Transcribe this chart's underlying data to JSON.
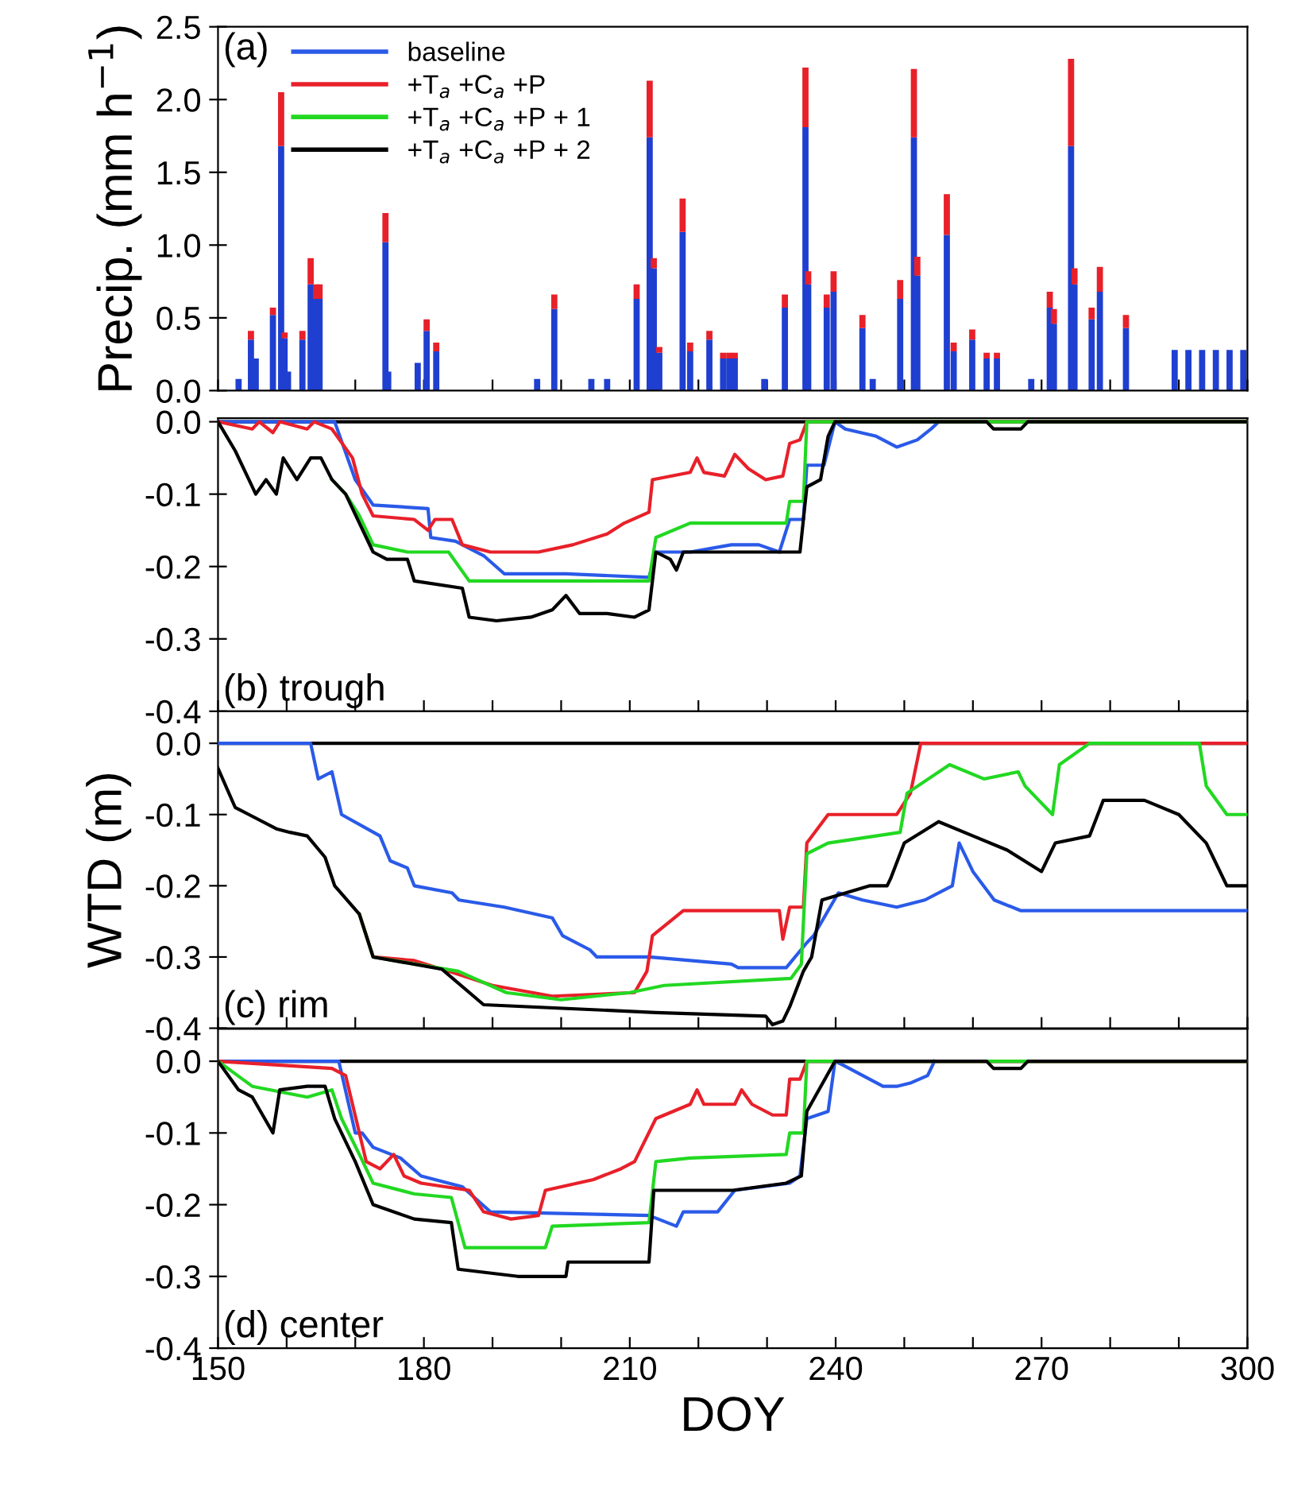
{
  "chart_data": [
    {
      "type": "bar",
      "stacked": true,
      "ylabel": "Precip. (mm h$^{−1}$)",
      "annotations": [
        "(a)"
      ],
      "tick_labels": "y",
      "x": [
        153,
        154.8,
        155.5,
        158,
        159.2,
        159.7,
        160.2,
        162.3,
        163.5,
        164.3,
        164.8,
        174.4,
        174.8,
        179.1,
        180.4,
        181.8,
        196.5,
        199,
        204.4,
        206.7,
        211,
        212.9,
        213.5,
        214.3,
        217.7,
        218.8,
        221.6,
        223.6,
        224.5,
        225.3,
        229.6,
        232.6,
        235.6,
        236,
        238.7,
        239.7,
        243.9,
        245.4,
        249.4,
        251.4,
        251.9,
        256.2,
        257.2,
        259.9,
        262,
        263.5,
        268.5,
        271.2,
        271.8,
        274.3,
        274.8,
        277.3,
        278.5,
        282.3,
        289.4,
        291.4,
        293.4,
        295.4,
        297.4,
        299.4
      ],
      "series": [
        {
          "color": "#1f3fd0",
          "values": [
            0.08,
            0.35,
            0.22,
            0.52,
            1.68,
            0.36,
            0.13,
            0.35,
            0.73,
            0.63,
            0.63,
            1.02,
            0.13,
            0.19,
            0.41,
            0.27,
            0.08,
            0.56,
            0.08,
            0.08,
            0.63,
            1.74,
            0.84,
            0.26,
            1.09,
            0.27,
            0.35,
            0.22,
            0.22,
            0.22,
            0.08,
            0.57,
            1.81,
            0.73,
            0.57,
            0.68,
            0.43,
            0.08,
            0.63,
            1.74,
            0.79,
            1.07,
            0.27,
            0.35,
            0.22,
            0.22,
            0.08,
            0.57,
            0.46,
            1.68,
            0.73,
            0.49,
            0.68,
            0.43,
            0.28,
            0.28,
            0.28,
            0.28,
            0.28,
            0.28
          ]
        },
        {
          "color": "#e8202a",
          "values": [
            null,
            0.06,
            null,
            0.05,
            0.37,
            0.04,
            null,
            0.06,
            0.18,
            0.1,
            0.1,
            0.2,
            null,
            null,
            0.08,
            0.06,
            null,
            0.1,
            null,
            null,
            0.1,
            0.39,
            0.07,
            0.04,
            0.23,
            0.06,
            0.06,
            0.04,
            0.04,
            0.04,
            null,
            0.09,
            0.41,
            0.09,
            0.09,
            0.14,
            0.09,
            null,
            0.13,
            0.47,
            0.13,
            0.28,
            0.06,
            0.07,
            0.04,
            0.04,
            null,
            0.11,
            0.1,
            0.6,
            0.11,
            0.08,
            0.17,
            0.09,
            null,
            null,
            null,
            null,
            null,
            null
          ]
        }
      ],
      "xlim": [
        150,
        300
      ],
      "xticks": [
        150,
        {
          "value": 160,
          "label": null
        },
        {
          "value": 170,
          "label": null
        },
        180,
        {
          "value": 190,
          "label": null
        },
        {
          "value": 200,
          "label": null
        },
        210,
        {
          "value": 220,
          "label": null
        },
        {
          "value": 230,
          "label": null
        },
        240,
        {
          "value": 250,
          "label": null
        },
        {
          "value": 260,
          "label": null
        },
        270,
        {
          "value": 280,
          "label": null
        },
        {
          "value": 290,
          "label": null
        },
        300
      ],
      "ylim": [
        0,
        2.5
      ],
      "yticks": [
        {
          "value": 0,
          "label": "0.0"
        },
        0.5,
        {
          "value": 1,
          "label": "1.0"
        },
        1.5,
        {
          "value": 2,
          "label": "2.0"
        },
        2.5
      ]
    },
    {
      "type": "line",
      "annotations": [
        "(b) trough"
      ],
      "legend": "top left",
      "tick_labels": "y",
      "ref_lines": [
        {
          "axis": "y",
          "value": 0,
          "color": "#000000"
        }
      ],
      "series": [
        {
          "name": "baseline",
          "color": "#2a5ae8",
          "x": [
            150,
            167,
            170,
            172.6,
            180.6,
            181,
            184.6,
            188.7,
            191.7,
            200.7,
            212.8,
            213.8,
            218.8,
            224.8,
            228.8,
            231.8,
            233.3,
            235.3,
            235.8,
            238.3,
            239.9,
            241.4,
            245.9,
            248.9,
            251.9,
            253.9,
            255
          ],
          "values": [
            0,
            0,
            -0.08,
            -0.115,
            -0.12,
            -0.16,
            -0.165,
            -0.185,
            -0.21,
            -0.21,
            -0.215,
            -0.18,
            -0.18,
            -0.17,
            -0.17,
            -0.18,
            -0.135,
            -0.135,
            -0.06,
            -0.06,
            0,
            -0.01,
            -0.02,
            -0.035,
            -0.025,
            -0.01,
            0
          ]
        },
        {
          "name": "+T$_{a}$ +C$_{a}$ +P",
          "color": "#e8202a",
          "x": [
            150,
            155,
            156,
            158,
            159,
            163,
            164,
            166.6,
            169.6,
            171,
            172.6,
            178.6,
            180.6,
            181.6,
            184.1,
            185.6,
            189.7,
            196.7,
            201.7,
            206.7,
            209.2,
            212.8,
            213.3,
            218.8,
            219.8,
            220.8,
            223.8,
            225.3,
            227.3,
            229.8,
            232.3,
            233.3,
            234.8,
            235.8,
            300
          ],
          "values": [
            0,
            -0.01,
            0,
            -0.015,
            0,
            -0.01,
            0,
            -0.01,
            -0.05,
            -0.1,
            -0.13,
            -0.135,
            -0.15,
            -0.135,
            -0.135,
            -0.17,
            -0.18,
            -0.18,
            -0.17,
            -0.155,
            -0.14,
            -0.125,
            -0.08,
            -0.07,
            -0.05,
            -0.07,
            -0.075,
            -0.045,
            -0.065,
            -0.08,
            -0.075,
            -0.03,
            -0.025,
            0,
            0
          ]
        },
        {
          "name": "+T$_{a}$ +C$_{a}$ +P + 1",
          "color": "#22d822",
          "x": [
            166.6,
            168.6,
            170.6,
            172.6,
            177.6,
            183.6,
            186.6,
            200.7,
            212.8,
            213.8,
            218.8,
            232.8,
            233.3,
            235.3,
            235.8,
            300
          ],
          "values": [
            -0.08,
            -0.1,
            -0.13,
            -0.17,
            -0.18,
            -0.18,
            -0.22,
            -0.22,
            -0.22,
            -0.16,
            -0.14,
            -0.14,
            -0.11,
            -0.11,
            0,
            0
          ]
        },
        {
          "name": "+T$_{a}$ +C$_{a}$ +P + 2",
          "color": "#000000",
          "x": [
            150,
            152.5,
            154.5,
            155.5,
            157,
            158.5,
            159.5,
            161.5,
            163.5,
            165,
            166.6,
            168.6,
            170.6,
            172.6,
            174.6,
            177.6,
            178.6,
            185.6,
            186.6,
            190.6,
            195.6,
            198.7,
            200.7,
            202.7,
            206.7,
            210.7,
            212.8,
            213.8,
            215.9,
            216.8,
            217.8,
            224.8,
            234.8,
            235.8,
            237.8,
            238.9,
            239.9,
            262,
            263,
            267,
            268,
            300
          ],
          "values": [
            0,
            -0.04,
            -0.08,
            -0.1,
            -0.08,
            -0.1,
            -0.05,
            -0.08,
            -0.05,
            -0.05,
            -0.08,
            -0.1,
            -0.14,
            -0.18,
            -0.19,
            -0.19,
            -0.22,
            -0.23,
            -0.27,
            -0.275,
            -0.27,
            -0.26,
            -0.24,
            -0.265,
            -0.265,
            -0.27,
            -0.26,
            -0.18,
            -0.19,
            -0.205,
            -0.18,
            -0.18,
            -0.18,
            -0.09,
            -0.08,
            -0.02,
            0,
            0,
            -0.01,
            -0.01,
            0,
            0
          ]
        }
      ],
      "xlim": [
        150,
        300
      ],
      "xticks": [
        150,
        {
          "value": 160,
          "label": null
        },
        {
          "value": 170,
          "label": null
        },
        180,
        {
          "value": 190,
          "label": null
        },
        {
          "value": 200,
          "label": null
        },
        210,
        {
          "value": 220,
          "label": null
        },
        {
          "value": 230,
          "label": null
        },
        240,
        {
          "value": 250,
          "label": null
        },
        {
          "value": 260,
          "label": null
        },
        270,
        {
          "value": 280,
          "label": null
        },
        {
          "value": 290,
          "label": null
        },
        300
      ],
      "ylim": [
        -0.4,
        0.005
      ],
      "yticks": [
        {
          "value": -0.4,
          "label": "-0.4"
        },
        {
          "value": -0.3,
          "label": "-0.3"
        },
        {
          "value": -0.2,
          "label": "-0.2"
        },
        {
          "value": -0.1,
          "label": "-0.1"
        },
        {
          "value": 0,
          "label": "0.0"
        }
      ]
    },
    {
      "type": "line",
      "ylabel": "WTD (m)",
      "annotations": [
        "(c) rim"
      ],
      "tick_labels": "y",
      "ref_lines": [
        {
          "axis": "y",
          "value": 0,
          "color": "#000000"
        }
      ],
      "series": [
        {
          "color": "#2a5ae8",
          "x": [
            150,
            163.5,
            164.6,
            166.6,
            168,
            173.6,
            175.1,
            177.6,
            178.6,
            184.1,
            185.1,
            191.7,
            198.7,
            200.2,
            204.2,
            205.2,
            212.8,
            224.8,
            225.8,
            232.8,
            235.8,
            236.8,
            240.4,
            243.9,
            248.9,
            253,
            257,
            258,
            260,
            263.1,
            267,
            300
          ],
          "values": [
            0,
            0,
            -0.05,
            -0.04,
            -0.1,
            -0.13,
            -0.165,
            -0.175,
            -0.2,
            -0.21,
            -0.22,
            -0.23,
            -0.245,
            -0.27,
            -0.29,
            -0.3,
            -0.3,
            -0.31,
            -0.315,
            -0.315,
            -0.28,
            -0.27,
            -0.21,
            -0.22,
            -0.23,
            -0.22,
            -0.2,
            -0.14,
            -0.18,
            -0.22,
            -0.235,
            -0.235
          ]
        },
        {
          "color": "#e8202a",
          "x": [
            170.6,
            172.6,
            178.6,
            183.6,
            190,
            198.7,
            210.7,
            212.5,
            213.3,
            217.8,
            231.8,
            232.3,
            233.3,
            235.3,
            235.8,
            238.9,
            248.9,
            250.9,
            252.4,
            300
          ],
          "values": [
            -0.24,
            -0.3,
            -0.305,
            -0.32,
            -0.34,
            -0.355,
            -0.35,
            -0.32,
            -0.27,
            -0.235,
            -0.235,
            -0.275,
            -0.23,
            -0.23,
            -0.14,
            -0.1,
            -0.1,
            -0.07,
            0,
            0
          ]
        },
        {
          "color": "#22d822",
          "x": [
            170.6,
            172.6,
            185,
            192,
            200,
            210,
            215,
            233.5,
            235,
            235.8,
            238.9,
            249.4,
            250.4,
            256.6,
            261.6,
            266.6,
            267.6,
            271.6,
            272.6,
            277,
            293,
            294,
            297,
            300
          ],
          "values": [
            -0.24,
            -0.3,
            -0.32,
            -0.35,
            -0.36,
            -0.35,
            -0.34,
            -0.33,
            -0.31,
            -0.155,
            -0.14,
            -0.125,
            -0.07,
            -0.03,
            -0.05,
            -0.04,
            -0.06,
            -0.1,
            -0.03,
            0,
            0,
            -0.06,
            -0.1,
            -0.1
          ]
        },
        {
          "color": "#000000",
          "x": [
            150,
            152.5,
            154.5,
            158.5,
            160.5,
            163,
            165.6,
            167,
            170.6,
            172.6,
            182.6,
            188.7,
            213.8,
            229.8,
            230.8,
            232.3,
            233.3,
            235.3,
            236.5,
            238,
            245,
            247.5,
            248,
            250,
            255,
            260,
            265,
            270,
            272,
            277,
            279,
            285,
            290,
            294,
            297,
            300
          ],
          "values": [
            -0.035,
            -0.09,
            -0.1,
            -0.12,
            -0.125,
            -0.13,
            -0.16,
            -0.2,
            -0.24,
            -0.3,
            -0.317,
            -0.367,
            -0.378,
            -0.383,
            -0.395,
            -0.39,
            -0.37,
            -0.32,
            -0.3,
            -0.22,
            -0.2,
            -0.2,
            -0.19,
            -0.14,
            -0.11,
            -0.13,
            -0.15,
            -0.18,
            -0.14,
            -0.13,
            -0.08,
            -0.08,
            -0.1,
            -0.14,
            -0.2,
            -0.2
          ]
        }
      ],
      "xlim": [
        150,
        300
      ],
      "xticks": [
        150,
        {
          "value": 160,
          "label": null
        },
        {
          "value": 170,
          "label": null
        },
        180,
        {
          "value": 190,
          "label": null
        },
        {
          "value": 200,
          "label": null
        },
        210,
        {
          "value": 220,
          "label": null
        },
        {
          "value": 230,
          "label": null
        },
        240,
        {
          "value": 250,
          "label": null
        },
        {
          "value": 260,
          "label": null
        },
        270,
        {
          "value": 280,
          "label": null
        },
        {
          "value": 290,
          "label": null
        },
        300
      ],
      "ylim": [
        -0.4,
        0.045
      ],
      "yticks": [
        {
          "value": -0.4,
          "label": "-0.4"
        },
        {
          "value": -0.3,
          "label": "-0.3"
        },
        {
          "value": -0.2,
          "label": "-0.2"
        },
        {
          "value": -0.1,
          "label": "-0.1"
        },
        {
          "value": 0,
          "label": "0.0"
        }
      ]
    },
    {
      "type": "line",
      "xlabel": "DOY",
      "annotations": [
        "(d) center"
      ],
      "ref_lines": [
        {
          "axis": "y",
          "value": 0,
          "color": "#000000"
        }
      ],
      "series": [
        {
          "color": "#2a5ae8",
          "x": [
            150,
            167.6,
            170,
            171,
            172.6,
            176.6,
            179.6,
            185.6,
            189.7,
            212.8,
            216.8,
            217.8,
            222.8,
            225.3,
            233.3,
            234.8,
            235.8,
            238.9,
            239.9,
            241,
            246.9,
            248.9,
            251,
            253.4,
            254.4
          ],
          "values": [
            0,
            0,
            -0.1,
            -0.1,
            -0.12,
            -0.135,
            -0.16,
            -0.175,
            -0.21,
            -0.215,
            -0.23,
            -0.21,
            -0.21,
            -0.18,
            -0.17,
            -0.16,
            -0.08,
            -0.07,
            0,
            -0.005,
            -0.035,
            -0.035,
            -0.03,
            -0.02,
            0
          ]
        },
        {
          "color": "#e8202a",
          "x": [
            150,
            166.6,
            168.6,
            169.6,
            171.6,
            173.6,
            175.6,
            177.1,
            179.6,
            186.6,
            188.7,
            192.7,
            196.7,
            197.7,
            204.7,
            208.7,
            210.7,
            213.8,
            218.8,
            219.8,
            220.8,
            225.3,
            226.3,
            227.8,
            230.8,
            232.8,
            233.3,
            234.8,
            235.8,
            300
          ],
          "values": [
            0,
            -0.01,
            -0.02,
            -0.06,
            -0.14,
            -0.15,
            -0.13,
            -0.16,
            -0.17,
            -0.18,
            -0.21,
            -0.22,
            -0.215,
            -0.18,
            -0.165,
            -0.15,
            -0.14,
            -0.08,
            -0.06,
            -0.04,
            -0.06,
            -0.06,
            -0.04,
            -0.06,
            -0.075,
            -0.075,
            -0.025,
            -0.025,
            0,
            0
          ]
        },
        {
          "color": "#22d822",
          "x": [
            150,
            155,
            163,
            166.6,
            168,
            170.6,
            172.6,
            178.6,
            184,
            186,
            197.7,
            198.7,
            212.8,
            213.8,
            218.8,
            232.8,
            233.3,
            235.3,
            235.8,
            300
          ],
          "values": [
            0,
            -0.035,
            -0.05,
            -0.04,
            -0.08,
            -0.13,
            -0.17,
            -0.185,
            -0.19,
            -0.26,
            -0.26,
            -0.23,
            -0.225,
            -0.14,
            -0.135,
            -0.13,
            -0.1,
            -0.1,
            0,
            0
          ]
        },
        {
          "color": "#000000",
          "x": [
            150,
            153,
            155,
            158,
            159,
            163,
            165.6,
            167,
            170,
            172.6,
            178.6,
            184,
            185,
            193.7,
            200.7,
            201,
            212.8,
            213.5,
            225,
            232.8,
            235,
            235.8,
            239.9,
            262,
            263,
            267,
            268,
            300
          ],
          "values": [
            0,
            -0.04,
            -0.05,
            -0.1,
            -0.04,
            -0.035,
            -0.035,
            -0.08,
            -0.14,
            -0.2,
            -0.22,
            -0.225,
            -0.29,
            -0.3,
            -0.3,
            -0.28,
            -0.28,
            -0.18,
            -0.18,
            -0.17,
            -0.16,
            -0.07,
            0,
            0,
            -0.01,
            -0.01,
            0,
            0
          ]
        }
      ],
      "xlim": [
        150,
        300
      ],
      "xticks": [
        150,
        {
          "value": 160,
          "label": null
        },
        {
          "value": 170,
          "label": null
        },
        180,
        {
          "value": 190,
          "label": null
        },
        {
          "value": 200,
          "label": null
        },
        210,
        {
          "value": 220,
          "label": null
        },
        {
          "value": 230,
          "label": null
        },
        240,
        {
          "value": 250,
          "label": null
        },
        {
          "value": 260,
          "label": null
        },
        270,
        {
          "value": 280,
          "label": null
        },
        {
          "value": 290,
          "label": null
        },
        300
      ],
      "ylim": [
        -0.4,
        0.045
      ],
      "yticks": [
        {
          "value": -0.4,
          "label": "-0.4"
        },
        {
          "value": -0.3,
          "label": "-0.3"
        },
        {
          "value": -0.2,
          "label": "-0.2"
        },
        {
          "value": -0.1,
          "label": "-0.1"
        },
        {
          "value": 0,
          "label": "0.0"
        }
      ]
    }
  ]
}
